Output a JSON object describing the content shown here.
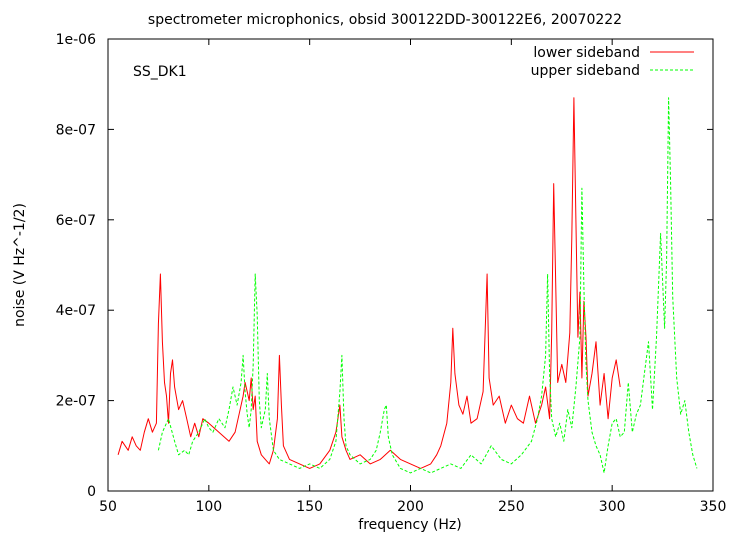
{
  "chart_data": {
    "type": "line",
    "title": "spectrometer microphonics, obsid 300122DD-300122E6, 20070222",
    "annotation": "SS_DK1",
    "xlabel": "frequency (Hz)",
    "ylabel": "noise (V Hz^-1/2)",
    "xlim": [
      50,
      350
    ],
    "ylim": [
      0,
      1e-06
    ],
    "x_ticks": [
      {
        "value": 50,
        "label": "50"
      },
      {
        "value": 100,
        "label": "100"
      },
      {
        "value": 150,
        "label": "150"
      },
      {
        "value": 200,
        "label": "200"
      },
      {
        "value": 250,
        "label": "250"
      },
      {
        "value": 300,
        "label": "300"
      },
      {
        "value": 350,
        "label": "350"
      }
    ],
    "y_ticks": [
      {
        "value": 0,
        "label": "0"
      },
      {
        "value": 2e-07,
        "label": "2e-07"
      },
      {
        "value": 4e-07,
        "label": "4e-07"
      },
      {
        "value": 6e-07,
        "label": "6e-07"
      },
      {
        "value": 8e-07,
        "label": "8e-07"
      },
      {
        "value": 1e-06,
        "label": "1e-06"
      }
    ],
    "grid": false,
    "legend_position": "top-right",
    "series": [
      {
        "name": "lower sideband",
        "color": "#ff0000",
        "dash": "solid",
        "x": [
          55,
          57,
          60,
          62,
          64,
          66,
          68,
          70,
          72,
          74,
          75,
          76,
          77,
          78,
          79,
          80,
          81,
          82,
          83,
          85,
          87,
          89,
          91,
          93,
          95,
          97,
          100,
          105,
          110,
          113,
          115,
          117,
          118,
          119,
          120,
          121,
          122,
          123,
          124,
          126,
          128,
          130,
          132,
          134,
          135,
          136,
          137,
          140,
          145,
          150,
          155,
          160,
          163,
          165,
          166,
          168,
          170,
          175,
          180,
          185,
          190,
          195,
          200,
          205,
          210,
          213,
          215,
          218,
          220,
          221,
          222,
          224,
          226,
          228,
          230,
          233,
          236,
          237,
          238,
          239,
          241,
          244,
          247,
          250,
          253,
          256,
          259,
          262,
          265,
          267,
          269,
          270,
          271,
          272,
          273,
          275,
          277,
          279,
          280,
          281,
          282,
          283,
          284,
          285,
          286,
          287,
          288,
          290,
          292,
          294,
          296,
          298,
          300,
          302,
          304
        ],
        "y": [
          8e-08,
          1.1e-07,
          9e-08,
          1.2e-07,
          1e-07,
          9e-08,
          1.3e-07,
          1.6e-07,
          1.3e-07,
          1.5e-07,
          3.7e-07,
          4.8e-07,
          3.3e-07,
          2.4e-07,
          2.1e-07,
          1.5e-07,
          2.6e-07,
          2.9e-07,
          2.3e-07,
          1.8e-07,
          2e-07,
          1.6e-07,
          1.2e-07,
          1.5e-07,
          1.2e-07,
          1.6e-07,
          1.5e-07,
          1.3e-07,
          1.1e-07,
          1.3e-07,
          1.7e-07,
          2.1e-07,
          2.4e-07,
          2.2e-07,
          2e-07,
          2.5e-07,
          1.8e-07,
          2.1e-07,
          1.1e-07,
          8e-08,
          7e-08,
          6e-08,
          9e-08,
          1.6e-07,
          3e-07,
          1.9e-07,
          1e-07,
          7e-08,
          6e-08,
          5e-08,
          6e-08,
          9e-08,
          1.3e-07,
          1.9e-07,
          1.2e-07,
          9e-08,
          7e-08,
          8e-08,
          6e-08,
          7e-08,
          9e-08,
          7e-08,
          6e-08,
          5e-08,
          6e-08,
          8e-08,
          1e-07,
          1.5e-07,
          2.4e-07,
          3.6e-07,
          2.6e-07,
          1.9e-07,
          1.7e-07,
          2.1e-07,
          1.5e-07,
          1.6e-07,
          2.2e-07,
          3.5e-07,
          4.8e-07,
          2.5e-07,
          1.9e-07,
          2.1e-07,
          1.5e-07,
          1.9e-07,
          1.6e-07,
          1.5e-07,
          2.1e-07,
          1.5e-07,
          1.9e-07,
          2.3e-07,
          1.6e-07,
          3.5e-07,
          6.8e-07,
          4.6e-07,
          2.4e-07,
          2.8e-07,
          2.4e-07,
          3.5e-07,
          5.6e-07,
          8.7e-07,
          6e-07,
          3.4e-07,
          4.4e-07,
          2.5e-07,
          4.2e-07,
          3.4e-07,
          2.1e-07,
          2.6e-07,
          3.3e-07,
          1.9e-07,
          2.6e-07,
          1.6e-07,
          2.5e-07,
          2.9e-07,
          2.3e-07
        ]
      },
      {
        "name": "upper sideband",
        "color": "#00ff00",
        "dash": "dashed",
        "x": [
          75,
          77,
          80,
          83,
          85,
          88,
          90,
          92,
          95,
          98,
          100,
          102,
          105,
          108,
          110,
          112,
          114,
          116,
          117,
          118,
          119,
          120,
          121,
          122,
          123,
          124,
          125,
          126,
          128,
          129,
          130,
          132,
          135,
          140,
          145,
          150,
          155,
          160,
          163,
          165,
          166,
          167,
          168,
          170,
          175,
          180,
          183,
          185,
          187,
          188,
          189,
          191,
          195,
          200,
          205,
          210,
          215,
          220,
          225,
          230,
          235,
          240,
          245,
          250,
          255,
          260,
          263,
          265,
          267,
          268,
          269,
          270,
          272,
          274,
          276,
          278,
          280,
          282,
          284,
          285,
          286,
          287,
          288,
          290,
          292,
          294,
          296,
          298,
          300,
          302,
          304,
          306,
          308,
          310,
          312,
          314,
          316,
          318,
          320,
          322,
          324,
          326,
          327,
          328,
          329,
          330,
          332,
          334,
          336,
          338,
          340,
          342
        ],
        "y": [
          9e-08,
          1.3e-07,
          1.6e-07,
          1.1e-07,
          8e-08,
          9e-08,
          8e-08,
          1.1e-07,
          1.3e-07,
          1.6e-07,
          1.4e-07,
          1.3e-07,
          1.6e-07,
          1.4e-07,
          1.8e-07,
          2.3e-07,
          1.9e-07,
          2.4e-07,
          3e-07,
          2.2e-07,
          1.7e-07,
          1.4e-07,
          1.8e-07,
          2.8e-07,
          4.8e-07,
          3.9e-07,
          2e-07,
          1.4e-07,
          1.8e-07,
          2.6e-07,
          1.6e-07,
          9e-08,
          7e-08,
          6e-08,
          5e-08,
          6e-08,
          5e-08,
          7e-08,
          1.1e-07,
          2.2e-07,
          3e-07,
          1.6e-07,
          1e-07,
          8e-08,
          6e-08,
          7e-08,
          9e-08,
          1.3e-07,
          1.8e-07,
          1.9e-07,
          1.2e-07,
          8e-08,
          5e-08,
          4e-08,
          5e-08,
          4e-08,
          5e-08,
          6e-08,
          5e-08,
          8e-08,
          6e-08,
          1e-07,
          7e-08,
          6e-08,
          8e-08,
          1.1e-07,
          1.6e-07,
          2.1e-07,
          3e-07,
          4.8e-07,
          2.6e-07,
          1.6e-07,
          1.2e-07,
          1.5e-07,
          1.1e-07,
          1.8e-07,
          1.4e-07,
          2.3e-07,
          3.4e-07,
          6.7e-07,
          4.5e-07,
          2.8e-07,
          2e-07,
          1.3e-07,
          1e-07,
          8e-08,
          4e-08,
          1e-07,
          1.5e-07,
          1.6e-07,
          1.2e-07,
          1.3e-07,
          2.4e-07,
          1.3e-07,
          1.7e-07,
          1.9e-07,
          2.6e-07,
          3.3e-07,
          1.8e-07,
          3.4e-07,
          5.7e-07,
          3.6e-07,
          5.1e-07,
          8.7e-07,
          6.8e-07,
          4.3e-07,
          2.5e-07,
          1.7e-07,
          2e-07,
          1.3e-07,
          8e-08,
          5e-08
        ]
      }
    ]
  }
}
